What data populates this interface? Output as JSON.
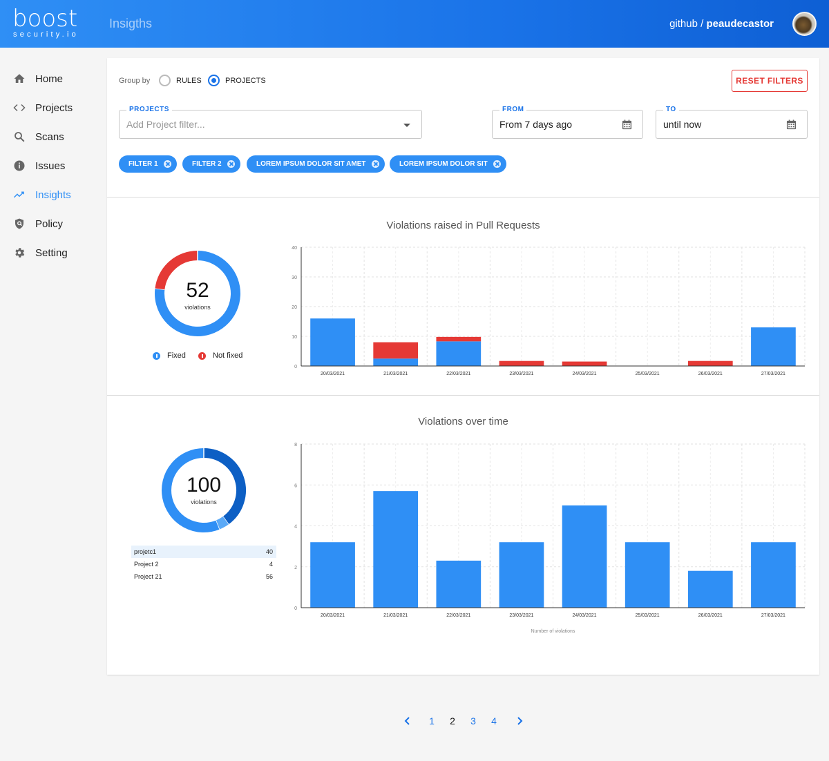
{
  "header": {
    "logo_text": "boost",
    "logo_sub": "security.io",
    "app_title": "Insigths",
    "user_org": "github",
    "user_sep": "/",
    "user_name": "peaudecastor"
  },
  "sidebar": {
    "items": [
      {
        "label": "Home",
        "icon": "home-icon"
      },
      {
        "label": "Projects",
        "icon": "code-icon"
      },
      {
        "label": "Scans",
        "icon": "search-icon"
      },
      {
        "label": "Issues",
        "icon": "info-icon"
      },
      {
        "label": "Insights",
        "icon": "trending-icon"
      },
      {
        "label": "Policy",
        "icon": "shield-icon"
      },
      {
        "label": "Setting",
        "icon": "gear-icon"
      }
    ],
    "active": "Insights"
  },
  "filters": {
    "group_by_label": "Group by",
    "group_by_options": [
      "RULES",
      "PROJECTS"
    ],
    "group_by_selected": "PROJECTS",
    "reset_label": "RESET FILTERS",
    "projects_label": "PROJECTS",
    "projects_placeholder": "Add Project filter...",
    "from_label": "FROM",
    "from_value": "From 7 days ago",
    "to_label": "TO",
    "to_value": "until now",
    "chips": [
      "FILTER 1",
      "FILTER 2",
      "LOREM IPSUM DOLOR SIT AMET",
      "LOREM IPSUM DOLOR SIT"
    ]
  },
  "section1": {
    "title": "Violations raised in Pull Requests",
    "total": "52",
    "total_sub": "violations",
    "legend": [
      {
        "label": "Fixed",
        "color": "#2f8ff5"
      },
      {
        "label": "Not fixed",
        "color": "#e53935"
      }
    ]
  },
  "section2": {
    "title": "Violations over time",
    "total": "100",
    "total_sub": "violations",
    "projects": [
      {
        "name": "projetc1",
        "value": "40"
      },
      {
        "name": "Project 2",
        "value": "4"
      },
      {
        "name": "Project 21",
        "value": "56"
      }
    ]
  },
  "pagination": {
    "pages": [
      "1",
      "2",
      "3",
      "4"
    ],
    "current": "2"
  },
  "chart_data": [
    {
      "type": "pie",
      "categories": [
        "Fixed",
        "Not fixed"
      ],
      "values": [
        40,
        12
      ],
      "colors": [
        "#2f8ff5",
        "#e53935"
      ]
    },
    {
      "type": "bar",
      "stacked": true,
      "title": "Violations raised in Pull Requests",
      "categories": [
        "20/03/2021",
        "21/03/2021",
        "22/03/2021",
        "23/03/2021",
        "24/03/2021",
        "25/03/2021",
        "26/03/2021",
        "27/03/2021"
      ],
      "series": [
        {
          "name": "Fixed",
          "color": "#2f8ff5",
          "values": [
            16,
            2.5,
            8.3,
            0,
            0,
            0,
            0,
            13
          ]
        },
        {
          "name": "Not fixed",
          "color": "#e53935",
          "values": [
            0,
            5.5,
            1.5,
            1.7,
            1.5,
            0,
            1.7,
            0
          ]
        }
      ],
      "ylim": [
        0,
        40
      ],
      "yticks": [
        0,
        10,
        20,
        30,
        40
      ],
      "grid": true
    },
    {
      "type": "pie",
      "categories": [
        "projetc1",
        "Project 2",
        "Project 21"
      ],
      "values": [
        40,
        4,
        56
      ],
      "colors": [
        "#0d5fc4",
        "#5aa9f7",
        "#2f8ff5"
      ]
    },
    {
      "type": "bar",
      "title": "Violations over time",
      "categories": [
        "20/03/2021",
        "21/03/2021",
        "22/03/2021",
        "23/03/2021",
        "24/03/2021",
        "25/03/2021",
        "26/03/2021",
        "27/03/2021"
      ],
      "values": [
        3.2,
        5.7,
        2.3,
        3.2,
        5.0,
        3.2,
        1.8,
        3.2
      ],
      "color": "#2f8ff5",
      "xlabel": "Number of violations",
      "ylim": [
        0,
        8
      ],
      "yticks": [
        0,
        2,
        4,
        6,
        8
      ],
      "grid": true
    }
  ]
}
